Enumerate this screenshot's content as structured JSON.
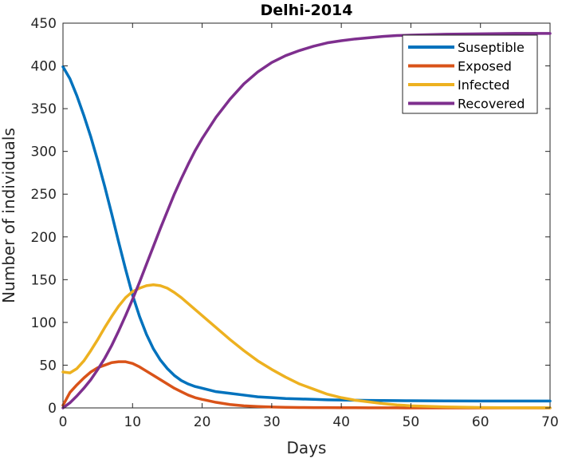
{
  "chart_data": {
    "type": "line",
    "title": "Delhi-2014",
    "xlabel": "Days",
    "ylabel": "Number of individuals",
    "xlim": [
      0,
      70
    ],
    "ylim": [
      0,
      450
    ],
    "xticks": [
      0,
      10,
      20,
      30,
      40,
      50,
      60,
      70
    ],
    "yticks": [
      0,
      50,
      100,
      150,
      200,
      250,
      300,
      350,
      400,
      450
    ],
    "grid": false,
    "legend_position": "top-right",
    "x": [
      0,
      1,
      2,
      3,
      4,
      5,
      6,
      7,
      8,
      9,
      10,
      11,
      12,
      13,
      14,
      15,
      16,
      17,
      18,
      19,
      20,
      22,
      24,
      26,
      28,
      30,
      32,
      34,
      36,
      38,
      40,
      42,
      44,
      46,
      48,
      50,
      55,
      60,
      65,
      70
    ],
    "series": [
      {
        "name": "Suseptible",
        "color": "#0072BD",
        "values": [
          399,
          385,
          365,
          342,
          317,
          289,
          259,
          227,
          194,
          162,
          132,
          107,
          86,
          69,
          56,
          46,
          38,
          32,
          28,
          25,
          23,
          19,
          17,
          15,
          13,
          12,
          11,
          10.5,
          10,
          9.5,
          9.2,
          9,
          8.8,
          8.6,
          8.5,
          8.4,
          8.2,
          8,
          8,
          8
        ]
      },
      {
        "name": "Exposed",
        "color": "#D95319",
        "values": [
          3,
          18,
          27,
          35,
          42,
          47,
          50,
          53,
          54,
          54,
          52,
          48,
          43,
          38,
          33,
          28,
          23,
          19,
          15,
          12,
          10,
          6.5,
          4,
          2.5,
          1.6,
          1,
          0.7,
          0.5,
          0.4,
          0.3,
          0.2,
          0.2,
          0.1,
          0.1,
          0.1,
          0,
          0,
          0,
          0,
          0
        ]
      },
      {
        "name": "Infected",
        "color": "#EDB120",
        "values": [
          42,
          41,
          46,
          55,
          67,
          80,
          94,
          107,
          119,
          129,
          136,
          140,
          143,
          144,
          143,
          140,
          135,
          129,
          122,
          115,
          108,
          94,
          80,
          67,
          55,
          45,
          36,
          28,
          22,
          16,
          12,
          9,
          7,
          5,
          3.5,
          2.5,
          1.2,
          0.5,
          0.2,
          0.1
        ]
      },
      {
        "name": "Recovered",
        "color": "#7E2F8E",
        "values": [
          0,
          6,
          14,
          23,
          33,
          45,
          58,
          73,
          90,
          108,
          127,
          147,
          168,
          189,
          210,
          230,
          250,
          268,
          285,
          301,
          315,
          340,
          361,
          379,
          393,
          404,
          412,
          418,
          423,
          427,
          429.5,
          431.5,
          433,
          434.5,
          435.5,
          436,
          437,
          437.5,
          438,
          438
        ]
      }
    ]
  }
}
